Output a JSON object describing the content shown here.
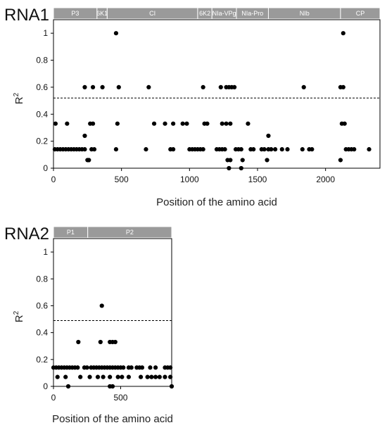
{
  "chart_data": [
    {
      "type": "scatter",
      "panel_label": "RNA1",
      "xlabel": "Position of the amino acid",
      "ylabel": "R",
      "ylabel_sup": "2",
      "xlim": [
        0,
        2400
      ],
      "ylim": [
        0,
        1.1
      ],
      "xticks": [
        0,
        500,
        1000,
        1500,
        2000
      ],
      "yticks": [
        0,
        0.2,
        0.4,
        0.6,
        0.8,
        1
      ],
      "threshold": 0.52,
      "gene_bar": [
        {
          "name": "P3",
          "start": 0,
          "end": 320
        },
        {
          "name": "6K1",
          "start": 320,
          "end": 395
        },
        {
          "name": "CI",
          "start": 395,
          "end": 1060
        },
        {
          "name": "6K2",
          "start": 1060,
          "end": 1165
        },
        {
          "name": "NIa-VPg",
          "start": 1165,
          "end": 1345
        },
        {
          "name": "NIa-Pro",
          "start": 1345,
          "end": 1580
        },
        {
          "name": "NIb",
          "start": 1580,
          "end": 2110
        },
        {
          "name": "CP",
          "start": 2110,
          "end": 2400
        }
      ],
      "points": [
        [
          15,
          0.33
        ],
        [
          100,
          0.33
        ],
        [
          270,
          0.33
        ],
        [
          290,
          0.33
        ],
        [
          470,
          0.33
        ],
        [
          740,
          0.33
        ],
        [
          820,
          0.33
        ],
        [
          880,
          0.33
        ],
        [
          950,
          0.33
        ],
        [
          980,
          0.33
        ],
        [
          1110,
          0.33
        ],
        [
          1130,
          0.33
        ],
        [
          1240,
          0.33
        ],
        [
          1270,
          0.33
        ],
        [
          1300,
          0.33
        ],
        [
          1430,
          0.33
        ],
        [
          2120,
          0.33
        ],
        [
          2140,
          0.33
        ],
        [
          10,
          0.14
        ],
        [
          30,
          0.14
        ],
        [
          50,
          0.14
        ],
        [
          70,
          0.14
        ],
        [
          90,
          0.14
        ],
        [
          110,
          0.14
        ],
        [
          130,
          0.14
        ],
        [
          150,
          0.14
        ],
        [
          170,
          0.14
        ],
        [
          190,
          0.14
        ],
        [
          210,
          0.14
        ],
        [
          230,
          0.14
        ],
        [
          280,
          0.14
        ],
        [
          300,
          0.14
        ],
        [
          460,
          0.14
        ],
        [
          680,
          0.14
        ],
        [
          860,
          0.14
        ],
        [
          880,
          0.14
        ],
        [
          1000,
          0.14
        ],
        [
          1020,
          0.14
        ],
        [
          1040,
          0.14
        ],
        [
          1060,
          0.14
        ],
        [
          1080,
          0.14
        ],
        [
          1100,
          0.14
        ],
        [
          1200,
          0.14
        ],
        [
          1220,
          0.14
        ],
        [
          1240,
          0.14
        ],
        [
          1260,
          0.14
        ],
        [
          1340,
          0.14
        ],
        [
          1360,
          0.14
        ],
        [
          1380,
          0.14
        ],
        [
          1450,
          0.14
        ],
        [
          1470,
          0.14
        ],
        [
          1530,
          0.14
        ],
        [
          1550,
          0.14
        ],
        [
          1580,
          0.14
        ],
        [
          1600,
          0.14
        ],
        [
          1630,
          0.14
        ],
        [
          1680,
          0.14
        ],
        [
          1720,
          0.14
        ],
        [
          1830,
          0.14
        ],
        [
          1880,
          0.14
        ],
        [
          1900,
          0.14
        ],
        [
          2150,
          0.14
        ],
        [
          2170,
          0.14
        ],
        [
          2190,
          0.14
        ],
        [
          2210,
          0.14
        ],
        [
          2320,
          0.14
        ],
        [
          230,
          0.24
        ],
        [
          1580,
          0.24
        ],
        [
          250,
          0.06
        ],
        [
          260,
          0.06
        ],
        [
          1280,
          0.06
        ],
        [
          1300,
          0.06
        ],
        [
          1390,
          0.06
        ],
        [
          1570,
          0.06
        ],
        [
          2110,
          0.06
        ],
        [
          1290,
          0.0
        ],
        [
          1380,
          0.0
        ],
        [
          230,
          0.6
        ],
        [
          290,
          0.6
        ],
        [
          360,
          0.6
        ],
        [
          480,
          0.6
        ],
        [
          700,
          0.6
        ],
        [
          1100,
          0.6
        ],
        [
          1230,
          0.6
        ],
        [
          1270,
          0.6
        ],
        [
          1290,
          0.6
        ],
        [
          1310,
          0.6
        ],
        [
          1330,
          0.6
        ],
        [
          1840,
          0.6
        ],
        [
          2110,
          0.6
        ],
        [
          2130,
          0.6
        ],
        [
          460,
          1.0
        ],
        [
          2130,
          1.0
        ]
      ]
    },
    {
      "type": "scatter",
      "panel_label": "RNA2",
      "xlabel": "Position of the amino acid",
      "ylabel": "R",
      "ylabel_sup": "2",
      "xlim": [
        0,
        880
      ],
      "ylim": [
        0,
        1.1
      ],
      "xticks": [
        0,
        500
      ],
      "yticks": [
        0,
        0.2,
        0.4,
        0.6,
        0.8,
        1
      ],
      "threshold": 0.49,
      "gene_bar": [
        {
          "name": "P1",
          "start": 0,
          "end": 255
        },
        {
          "name": "P2",
          "start": 255,
          "end": 880
        }
      ],
      "points": [
        [
          0,
          0.14
        ],
        [
          20,
          0.14
        ],
        [
          40,
          0.14
        ],
        [
          60,
          0.14
        ],
        [
          80,
          0.14
        ],
        [
          100,
          0.14
        ],
        [
          120,
          0.14
        ],
        [
          140,
          0.14
        ],
        [
          160,
          0.14
        ],
        [
          180,
          0.14
        ],
        [
          230,
          0.14
        ],
        [
          250,
          0.14
        ],
        [
          280,
          0.14
        ],
        [
          300,
          0.14
        ],
        [
          320,
          0.14
        ],
        [
          340,
          0.14
        ],
        [
          360,
          0.14
        ],
        [
          380,
          0.14
        ],
        [
          400,
          0.14
        ],
        [
          420,
          0.14
        ],
        [
          440,
          0.14
        ],
        [
          460,
          0.14
        ],
        [
          480,
          0.14
        ],
        [
          500,
          0.14
        ],
        [
          520,
          0.14
        ],
        [
          560,
          0.14
        ],
        [
          580,
          0.14
        ],
        [
          620,
          0.14
        ],
        [
          640,
          0.14
        ],
        [
          660,
          0.14
        ],
        [
          720,
          0.14
        ],
        [
          760,
          0.14
        ],
        [
          830,
          0.14
        ],
        [
          850,
          0.14
        ],
        [
          870,
          0.14
        ],
        [
          30,
          0.07
        ],
        [
          90,
          0.07
        ],
        [
          200,
          0.07
        ],
        [
          270,
          0.07
        ],
        [
          330,
          0.07
        ],
        [
          370,
          0.07
        ],
        [
          420,
          0.07
        ],
        [
          480,
          0.07
        ],
        [
          510,
          0.07
        ],
        [
          560,
          0.07
        ],
        [
          650,
          0.07
        ],
        [
          700,
          0.07
        ],
        [
          730,
          0.07
        ],
        [
          760,
          0.07
        ],
        [
          790,
          0.07
        ],
        [
          830,
          0.07
        ],
        [
          870,
          0.07
        ],
        [
          110,
          0.0
        ],
        [
          420,
          0.0
        ],
        [
          440,
          0.0
        ],
        [
          880,
          0.0
        ],
        [
          185,
          0.33
        ],
        [
          350,
          0.33
        ],
        [
          420,
          0.33
        ],
        [
          440,
          0.33
        ],
        [
          460,
          0.33
        ],
        [
          360,
          0.6
        ]
      ]
    }
  ]
}
